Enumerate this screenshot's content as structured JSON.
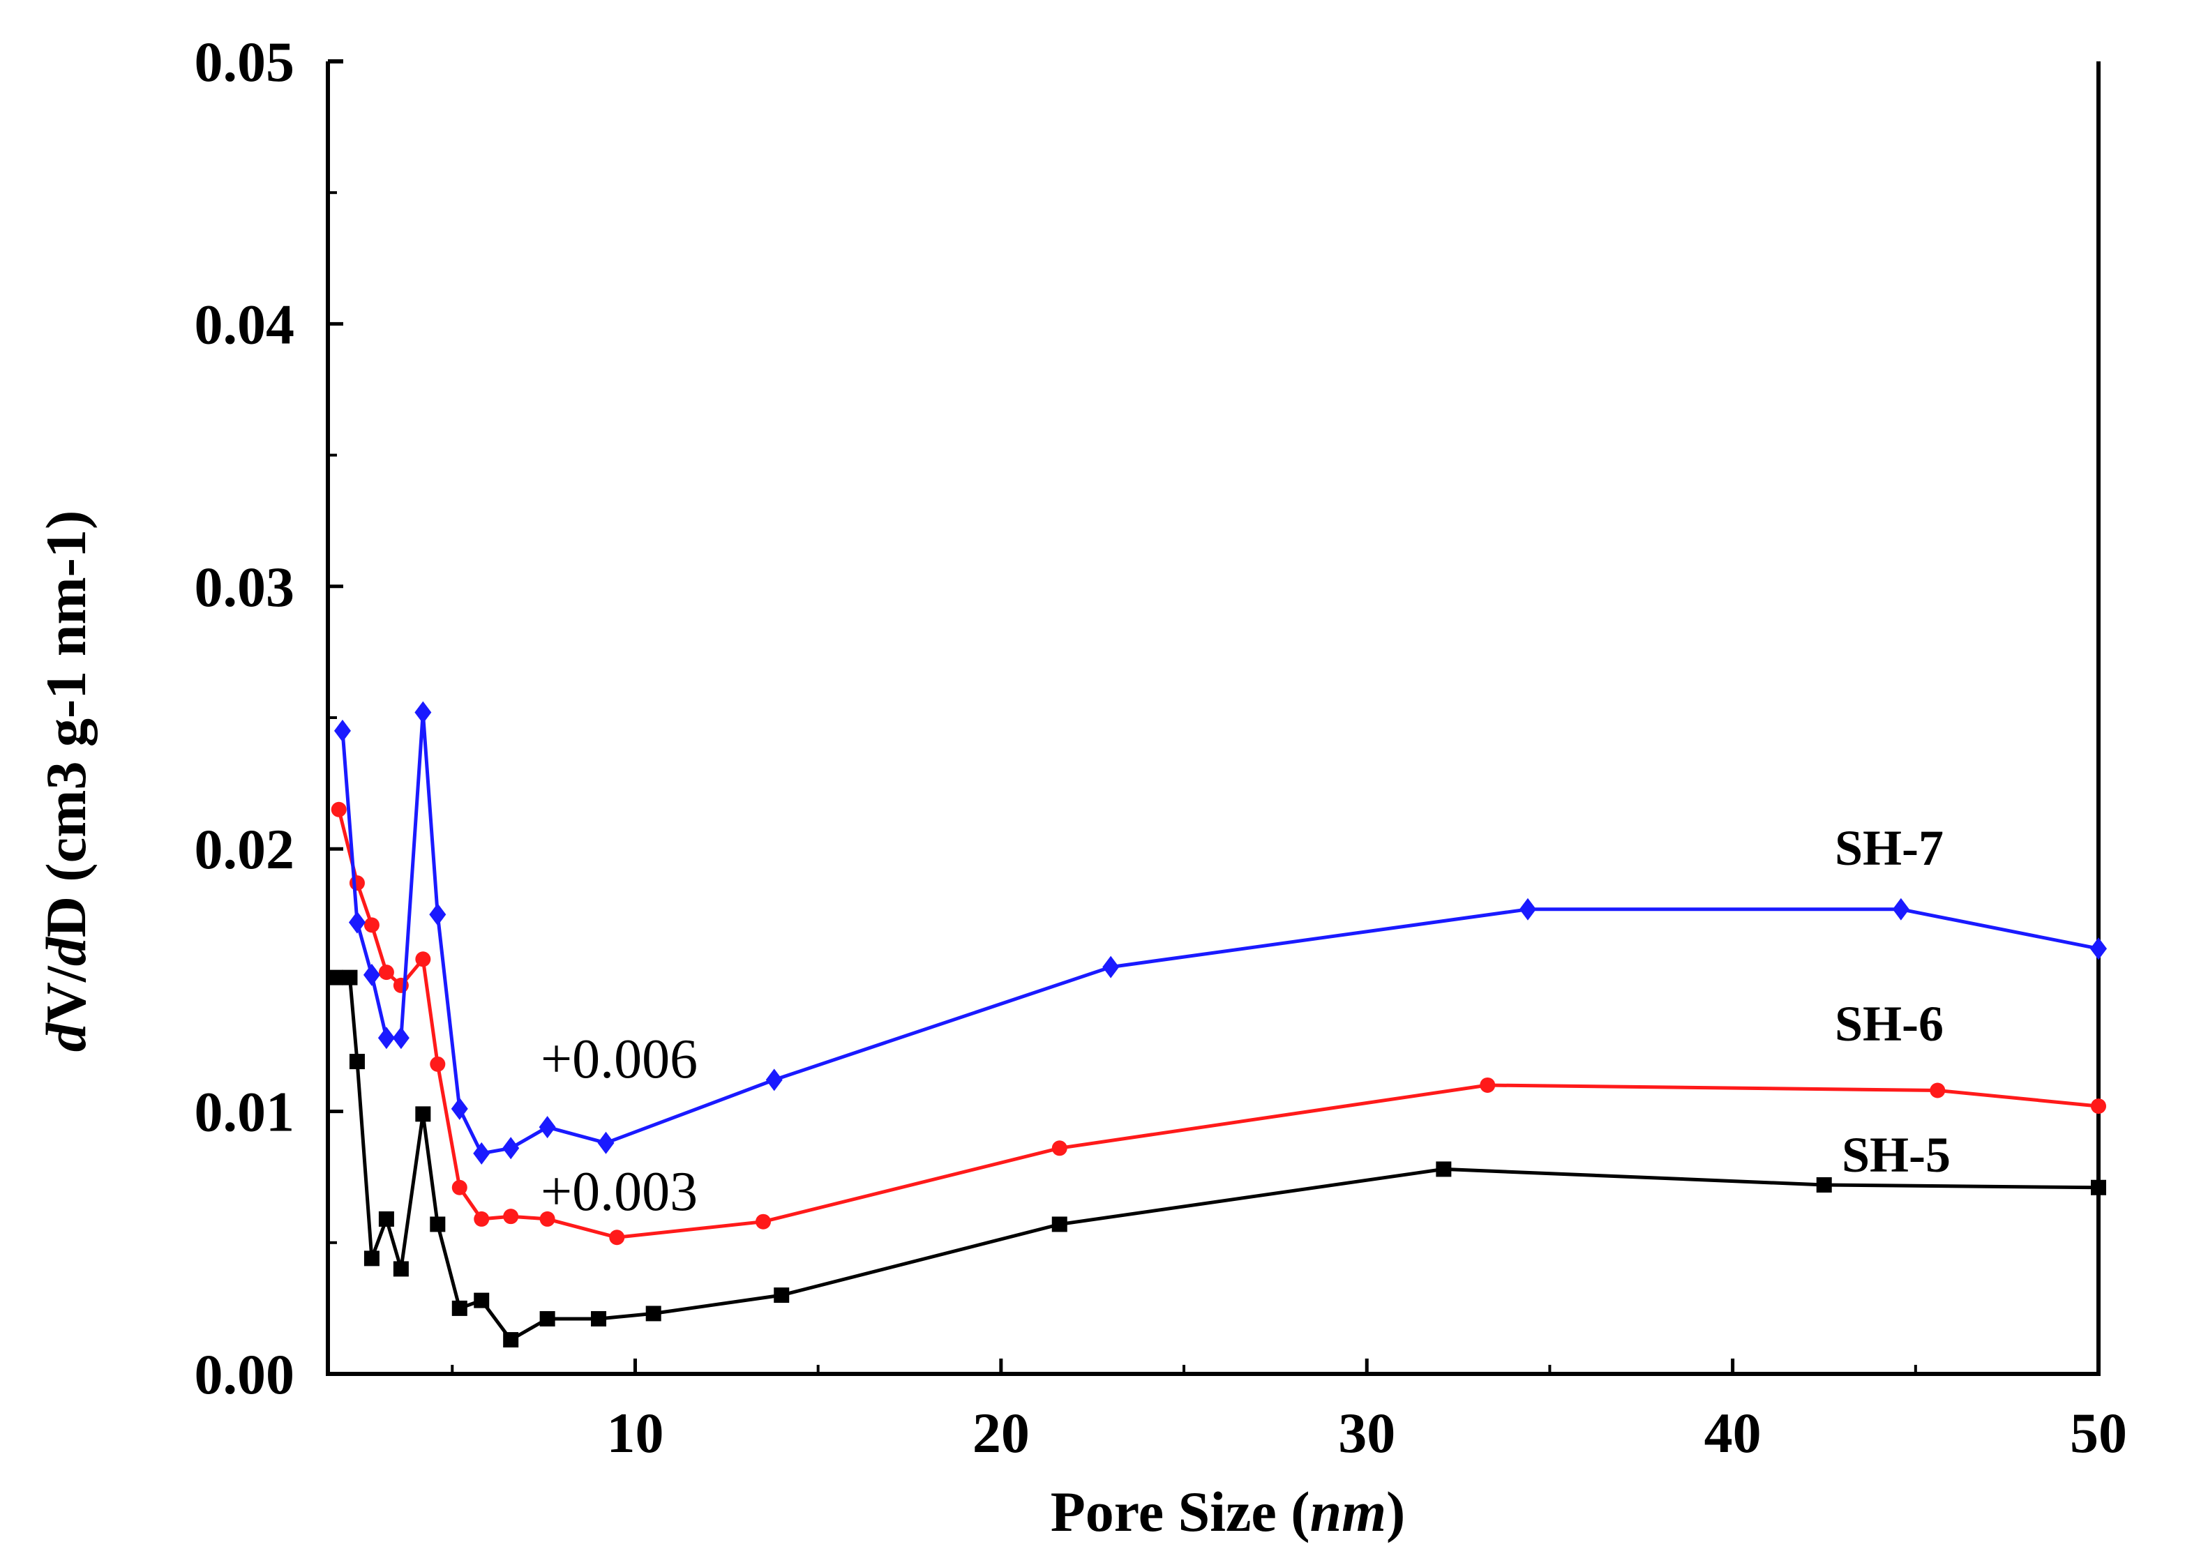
{
  "chart_data": {
    "type": "line",
    "title": "",
    "xlabel_prefix": "Pore Size (",
    "xlabel_unit": "nm",
    "xlabel_suffix": ")",
    "ylabel_parts": [
      "d",
      "V/",
      "d",
      "D (cm3 g-1 nm-1)"
    ],
    "xlim": [
      1.6,
      50
    ],
    "ylim": [
      0,
      0.05
    ],
    "x_ticks": [
      10,
      20,
      30,
      40,
      50
    ],
    "x_tick_labels": [
      "10",
      "20",
      "30",
      "40",
      "50"
    ],
    "y_ticks": [
      0,
      0.01,
      0.02,
      0.03,
      0.04,
      0.05
    ],
    "y_tick_labels": [
      "0.00",
      "0.01",
      "0.02",
      "0.03",
      "0.04",
      "0.05"
    ],
    "grid": false,
    "series": [
      {
        "name": "SH-5",
        "label": "SH-5",
        "color": "#000000",
        "marker": "square",
        "offset_note": "",
        "points": [
          [
            1.8,
            0.0151
          ],
          [
            2.2,
            0.0151
          ],
          [
            2.4,
            0.0119
          ],
          [
            2.8,
            0.0044
          ],
          [
            3.2,
            0.0059
          ],
          [
            3.6,
            0.004
          ],
          [
            4.2,
            0.0099
          ],
          [
            4.6,
            0.0057
          ],
          [
            5.2,
            0.0025
          ],
          [
            5.8,
            0.0028
          ],
          [
            6.6,
            0.0013
          ],
          [
            7.6,
            0.0021
          ],
          [
            9.0,
            0.0021
          ],
          [
            10.5,
            0.0023
          ],
          [
            14.0,
            0.003
          ],
          [
            21.6,
            0.0057
          ],
          [
            32.1,
            0.0078
          ],
          [
            42.5,
            0.0072
          ],
          [
            50.0,
            0.0071
          ]
        ]
      },
      {
        "name": "SH-6",
        "label": "SH-6",
        "color": "#ff1a1a",
        "marker": "circle",
        "offset_note": "+0.003",
        "points": [
          [
            1.9,
            0.0215
          ],
          [
            2.4,
            0.0187
          ],
          [
            2.8,
            0.0171
          ],
          [
            3.2,
            0.0153
          ],
          [
            3.6,
            0.0148
          ],
          [
            4.2,
            0.0158
          ],
          [
            4.6,
            0.0118
          ],
          [
            5.2,
            0.0071
          ],
          [
            5.8,
            0.0059
          ],
          [
            6.6,
            0.006
          ],
          [
            7.6,
            0.0059
          ],
          [
            9.5,
            0.0052
          ],
          [
            13.5,
            0.0058
          ],
          [
            21.6,
            0.0086
          ],
          [
            33.3,
            0.011
          ],
          [
            45.6,
            0.0108
          ],
          [
            50.0,
            0.0102
          ]
        ]
      },
      {
        "name": "SH-7",
        "label": "SH-7",
        "color": "#1a1aff",
        "marker": "diamond",
        "offset_note": "+0.006",
        "points": [
          [
            2.0,
            0.0245
          ],
          [
            2.4,
            0.0172
          ],
          [
            2.8,
            0.0152
          ],
          [
            3.2,
            0.0128
          ],
          [
            3.6,
            0.0128
          ],
          [
            4.2,
            0.0252
          ],
          [
            4.6,
            0.0175
          ],
          [
            5.2,
            0.0101
          ],
          [
            5.8,
            0.0084
          ],
          [
            6.6,
            0.0086
          ],
          [
            7.6,
            0.0094
          ],
          [
            9.2,
            0.0088
          ],
          [
            13.8,
            0.0112
          ],
          [
            23.0,
            0.0155
          ],
          [
            34.4,
            0.0177
          ],
          [
            44.6,
            0.0177
          ],
          [
            50.0,
            0.0162
          ]
        ]
      }
    ]
  }
}
